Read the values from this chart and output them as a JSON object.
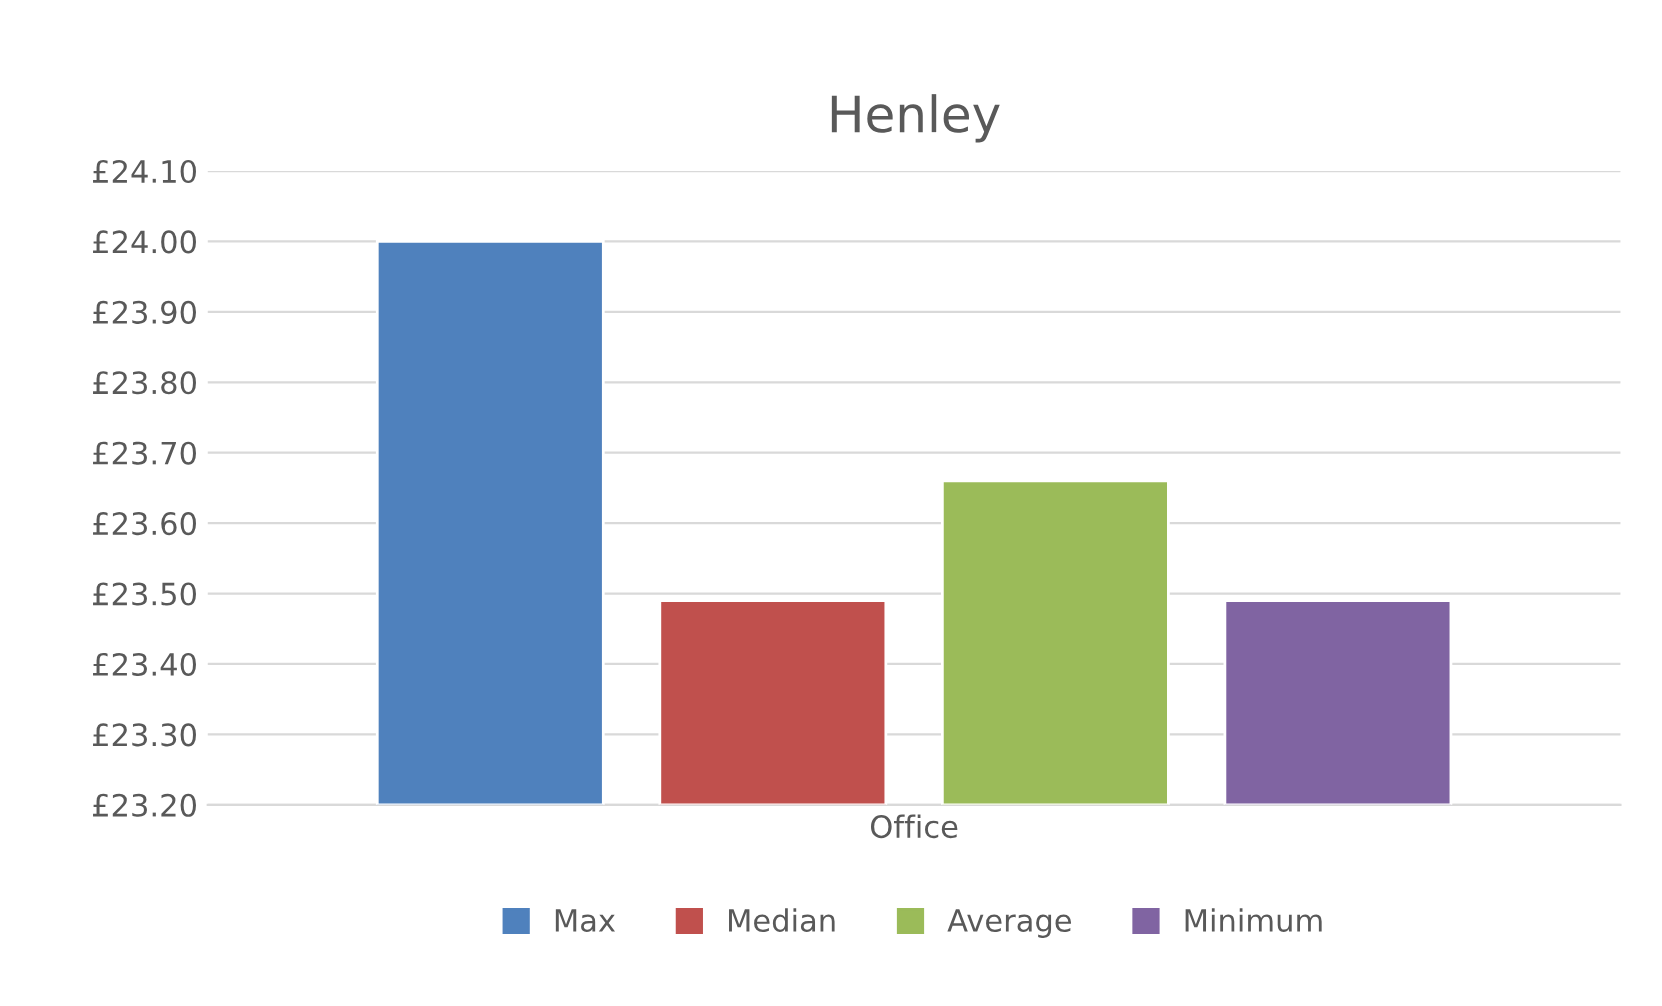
{
  "chart_data": {
    "type": "bar",
    "title": "Henley",
    "categories": [
      "Office"
    ],
    "series": [
      {
        "name": "Max",
        "color": "#4f81bd",
        "values": [
          24.0
        ]
      },
      {
        "name": "Median",
        "color": "#c0504d",
        "values": [
          23.49
        ]
      },
      {
        "name": "Average",
        "color": "#9bbb59",
        "values": [
          23.66
        ]
      },
      {
        "name": "Minimum",
        "color": "#8064a2",
        "values": [
          23.49
        ]
      }
    ],
    "ylim": [
      23.2,
      24.1
    ],
    "yticks": [
      {
        "value": 23.2,
        "label": "£23.20"
      },
      {
        "value": 23.3,
        "label": "£23.30"
      },
      {
        "value": 23.4,
        "label": "£23.40"
      },
      {
        "value": 23.5,
        "label": "£23.50"
      },
      {
        "value": 23.6,
        "label": "£23.60"
      },
      {
        "value": 23.7,
        "label": "£23.70"
      },
      {
        "value": 23.8,
        "label": "£23.80"
      },
      {
        "value": 23.9,
        "label": "£23.90"
      },
      {
        "value": 24.0,
        "label": "£24.00"
      },
      {
        "value": 24.1,
        "label": "£24.10"
      }
    ],
    "grid": "y",
    "legend": "bottom"
  }
}
